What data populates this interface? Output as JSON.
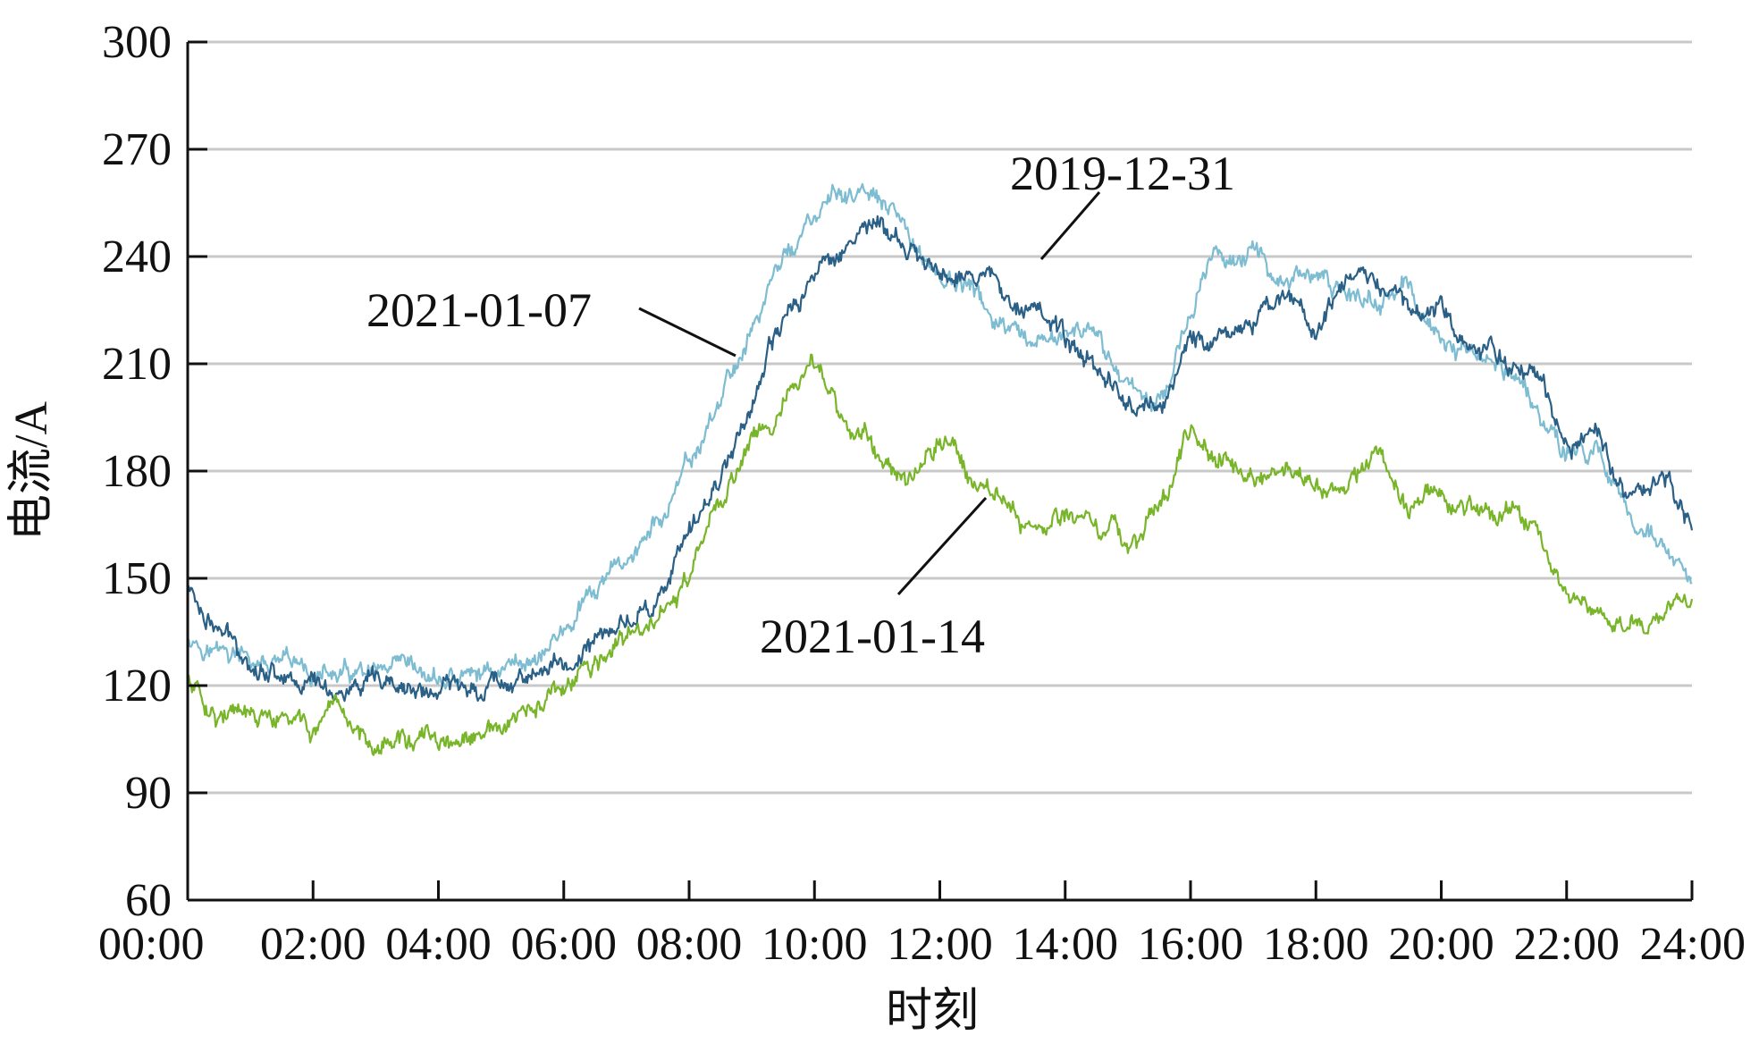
{
  "chart_data": {
    "type": "line",
    "xlabel": "时刻",
    "ylabel": "电流/A",
    "x_ticks": [
      "00:00",
      "02:00",
      "04:00",
      "06:00",
      "08:00",
      "10:00",
      "12:00",
      "14:00",
      "16:00",
      "18:00",
      "20:00",
      "22:00",
      "24:00"
    ],
    "y_ticks": [
      "60",
      "90",
      "120",
      "150",
      "180",
      "210",
      "240",
      "270",
      "300"
    ],
    "xlim_hours": [
      0,
      24
    ],
    "ylim": [
      60,
      300
    ],
    "grid": "horizontal",
    "series": [
      {
        "name": "2021-01-07",
        "color": "#7dbcd1",
        "x": [
          0,
          0.5,
          1,
          1.5,
          2,
          2.5,
          3,
          3.5,
          4,
          4.5,
          5,
          5.5,
          6,
          6.5,
          7,
          7.5,
          8,
          8.5,
          9,
          9.5,
          10,
          10.5,
          11,
          11.5,
          12,
          12.5,
          13,
          13.5,
          14,
          14.5,
          15,
          15.5,
          16,
          16.5,
          17,
          17.5,
          18,
          18.5,
          19,
          19.5,
          20,
          20.5,
          21,
          21.5,
          22,
          22.5,
          23,
          23.5,
          24
        ],
        "values": [
          135,
          130,
          126,
          124,
          123,
          122,
          121,
          121,
          121,
          122,
          125,
          128,
          135,
          145,
          155,
          165,
          180,
          200,
          220,
          240,
          250,
          258,
          255,
          245,
          235,
          230,
          220,
          210,
          220,
          215,
          205,
          200,
          225,
          242,
          240,
          235,
          232,
          230,
          228,
          230,
          215,
          212,
          210,
          200,
          185,
          185,
          170,
          160,
          145
        ]
      },
      {
        "name": "2019-12-31",
        "color": "#2a5f86",
        "x": [
          0,
          0.5,
          1,
          1.5,
          2,
          2.5,
          3,
          3.5,
          4,
          4.5,
          5,
          5.5,
          6,
          6.5,
          7,
          7.5,
          8,
          8.5,
          9,
          9.5,
          10,
          10.5,
          11,
          11.5,
          12,
          12.5,
          13,
          13.5,
          14,
          14.5,
          15,
          15.5,
          16,
          16.5,
          17,
          17.5,
          18,
          18.5,
          19,
          19.5,
          20,
          20.5,
          21,
          21.5,
          22,
          22.5,
          23,
          23.5,
          24
        ],
        "values": [
          148,
          135,
          128,
          124,
          121,
          119,
          118,
          118,
          118,
          120,
          122,
          124,
          125,
          132,
          138,
          145,
          160,
          180,
          200,
          220,
          235,
          245,
          250,
          240,
          235,
          238,
          230,
          230,
          215,
          210,
          200,
          198,
          215,
          220,
          222,
          230,
          220,
          230,
          235,
          228,
          225,
          215,
          212,
          210,
          190,
          190,
          170,
          180,
          165
        ]
      },
      {
        "name": "2021-01-14",
        "color": "#79b52a",
        "x": [
          0,
          0.5,
          1,
          1.5,
          2,
          2.5,
          3,
          3.5,
          4,
          4.5,
          5,
          5.5,
          6,
          6.5,
          7,
          7.5,
          8,
          8.5,
          9,
          9.5,
          10,
          10.5,
          11,
          11.5,
          12,
          12.5,
          13,
          13.5,
          14,
          14.5,
          15,
          15.5,
          16,
          16.5,
          17,
          17.5,
          18,
          18.5,
          19,
          19.5,
          20,
          20.5,
          21,
          21.5,
          22,
          22.5,
          23,
          23.5,
          24
        ],
        "values": [
          122,
          113,
          110,
          109,
          108,
          107,
          106,
          105,
          103,
          103,
          107,
          112,
          118,
          125,
          132,
          138,
          150,
          170,
          190,
          200,
          208,
          195,
          185,
          180,
          190,
          180,
          172,
          165,
          168,
          165,
          160,
          170,
          190,
          185,
          178,
          180,
          175,
          175,
          185,
          170,
          175,
          170,
          170,
          168,
          145,
          140,
          138,
          140,
          142
        ]
      }
    ],
    "annotations": [
      {
        "label": "2019-12-31"
      },
      {
        "label": "2021-01-07"
      },
      {
        "label": "2021-01-14"
      }
    ]
  }
}
